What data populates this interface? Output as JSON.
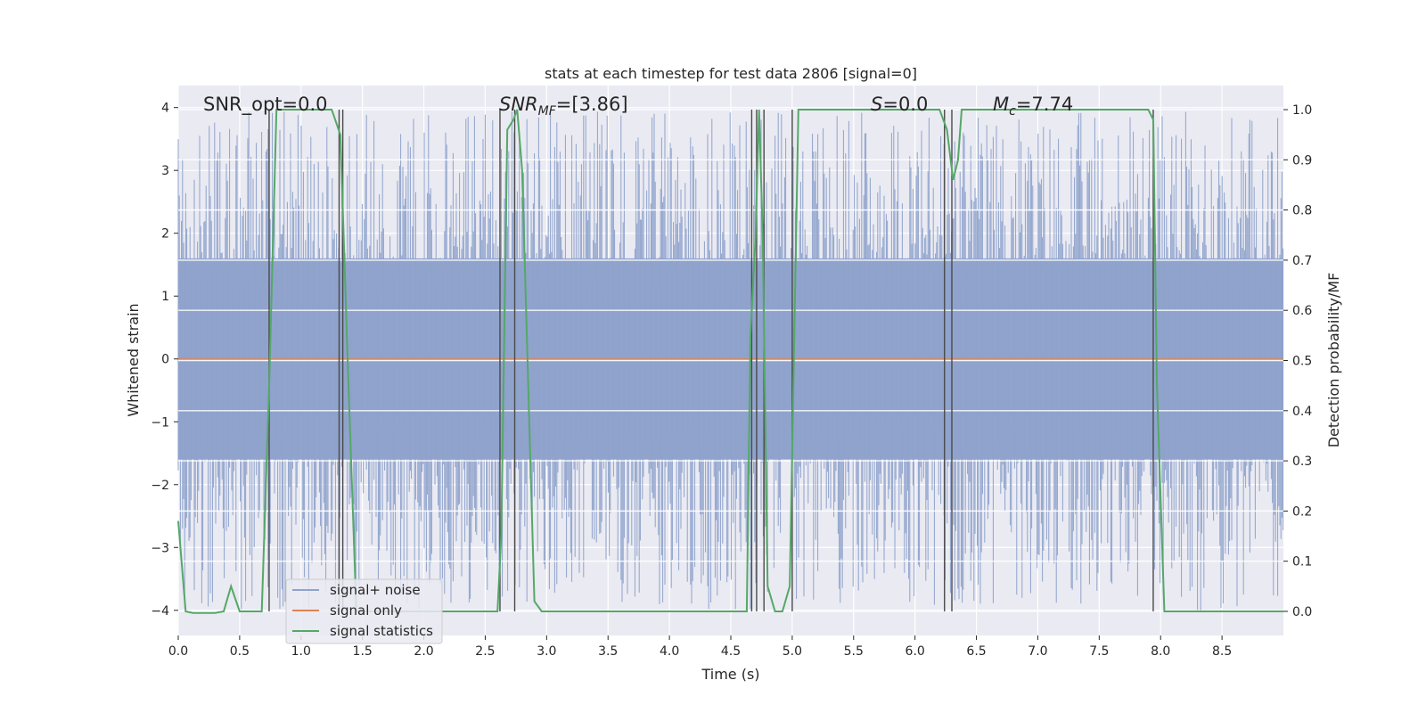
{
  "chart_data": {
    "type": "line",
    "title": "stats at each timestep for test data 2806 [signal=0]",
    "xlabel": "Time (s)",
    "ylabel": "Whitened strain",
    "ylabel_right": "Detection probability/MF",
    "xlim": [
      0.0,
      9.0
    ],
    "ylim": [
      -4.4,
      4.35
    ],
    "ylim_right": [
      -0.048,
      1.048
    ],
    "xticks": [
      "0.0",
      "0.5",
      "1.0",
      "1.5",
      "2.0",
      "2.5",
      "3.0",
      "3.5",
      "4.0",
      "4.5",
      "5.0",
      "5.5",
      "6.0",
      "6.5",
      "7.0",
      "7.5",
      "8.0",
      "8.5"
    ],
    "yticks": [
      "4",
      "3",
      "2",
      "1",
      "0",
      "−1",
      "−2",
      "−3",
      "−4"
    ],
    "yticks_right": [
      "1.0",
      "0.9",
      "0.8",
      "0.7",
      "0.6",
      "0.5",
      "0.4",
      "0.3",
      "0.2",
      "0.1",
      "0.0"
    ],
    "annotations": {
      "snr_opt": "SNR_opt=0.0",
      "snr_mf_main": "SNR",
      "snr_mf_sub": "MF",
      "snr_mf_rest": "=[3.86]",
      "s_main": "S",
      "s_rest": "=0.0",
      "mc_main": "M",
      "mc_sub": "c",
      "mc_rest": "=7.74"
    },
    "legend_position": "lower-left",
    "colors": {
      "background": "#eaeaf2",
      "grid": "#ffffff",
      "noise": "#8fa3cc",
      "signal_only": "#dd8452",
      "statistics": "#55a868",
      "vlines": "#4a4a4a"
    },
    "series": [
      {
        "name": "signal+ noise",
        "description_stats": {
          "envelope_low": -1.6,
          "envelope_high": 1.6,
          "peak_max": 3.95,
          "peak_min": -4.0
        }
      },
      {
        "name": "signal only",
        "x": [
          0.0,
          9.0
        ],
        "y": [
          0.0,
          0.0
        ]
      },
      {
        "name": "signal statistics",
        "x": [
          0.0,
          0.06,
          0.12,
          0.3,
          0.37,
          0.43,
          0.5,
          0.68,
          0.74,
          0.8,
          0.85,
          0.9,
          1.2,
          1.25,
          1.32,
          1.38,
          1.45,
          2.6,
          2.63,
          2.68,
          2.73,
          2.76,
          2.8,
          2.85,
          2.9,
          2.96,
          3.0,
          3.5,
          4.0,
          4.5,
          4.6,
          4.63,
          4.66,
          4.7,
          4.73,
          4.76,
          4.8,
          4.86,
          4.92,
          4.98,
          5.05,
          5.5,
          5.7,
          5.9,
          6.1,
          6.2,
          6.26,
          6.31,
          6.35,
          6.38,
          6.45,
          7.0,
          7.5,
          7.9,
          7.94,
          7.97,
          8.03,
          8.08,
          8.5,
          8.6,
          9.0
        ],
        "y": [
          0.18,
          0.0,
          -0.003,
          -0.003,
          0.0,
          0.05,
          0.0,
          0.0,
          0.45,
          1.0,
          1.0,
          1.0,
          1.0,
          1.0,
          0.95,
          0.5,
          0.0,
          0.0,
          0.15,
          0.96,
          0.98,
          1.0,
          0.88,
          0.45,
          0.02,
          0.0,
          0.0,
          0.0,
          0.0,
          0.0,
          0.0,
          0.0,
          0.55,
          0.74,
          1.0,
          0.75,
          0.05,
          0.0,
          0.0,
          0.05,
          1.0,
          1.0,
          1.0,
          1.0,
          1.0,
          1.0,
          0.96,
          0.86,
          0.9,
          1.0,
          1.0,
          1.0,
          1.0,
          1.0,
          0.98,
          0.45,
          0.0,
          0.0,
          0.0,
          0.0,
          0.0
        ]
      }
    ],
    "vertical_lines_x": [
      0.74,
      1.31,
      1.34,
      2.62,
      2.74,
      4.67,
      4.71,
      4.77,
      5.0,
      6.24,
      6.3,
      7.94
    ]
  }
}
